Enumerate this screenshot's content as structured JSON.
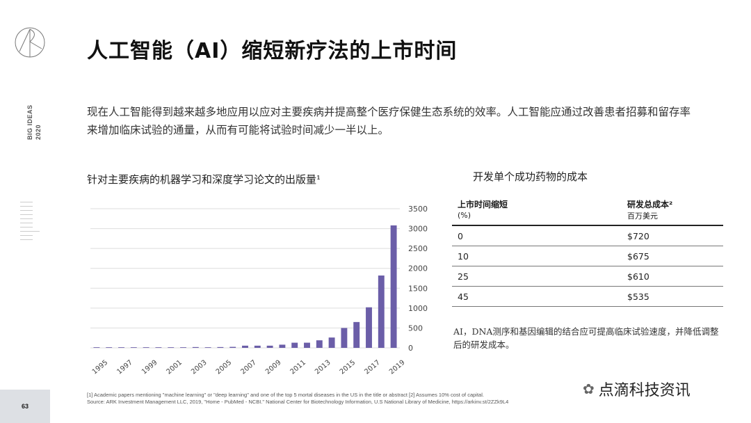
{
  "sidebar": {
    "logo": "ARK",
    "brand_line1": "BIG IDEAS",
    "brand_line2": "2020",
    "page_number": "63"
  },
  "title": "人工智能（AI）缩短新疗法的上市时间",
  "intro": "现在人工智能得到越来越多地应用以应对主要疾病并提高整个医疗保健生态系统的效率。人工智能应通过改善患者招募和留存率来增加临床试验的通量，从而有可能将试验时间减少一半以上。",
  "chart_data": {
    "type": "bar",
    "title": "针对主要疾病的机器学习和深度学习论文的出版量¹",
    "x": [
      1995,
      1996,
      1997,
      1998,
      1999,
      2000,
      2001,
      2002,
      2003,
      2004,
      2005,
      2006,
      2007,
      2008,
      2009,
      2010,
      2011,
      2012,
      2013,
      2014,
      2015,
      2016,
      2017,
      2018,
      2019
    ],
    "values": [
      15,
      15,
      15,
      15,
      15,
      15,
      15,
      15,
      20,
      15,
      20,
      25,
      55,
      55,
      55,
      80,
      130,
      130,
      190,
      260,
      500,
      650,
      1020,
      1820,
      3080
    ],
    "xticks": [
      "1995",
      "1997",
      "1999",
      "2001",
      "2003",
      "2005",
      "2007",
      "2009",
      "2011",
      "2013",
      "2015",
      "2017",
      "2019"
    ],
    "yticks": [
      "0",
      "500",
      "1000",
      "1500",
      "2000",
      "2500",
      "3000",
      "3500"
    ],
    "ylim": [
      0,
      3500
    ],
    "grid": true,
    "yaxis_side": "right",
    "color": "#6b5ea8"
  },
  "table": {
    "title": "开发单个成功药物的成本",
    "col1_header": "上市时间缩短",
    "col1_unit": "(%)",
    "col2_header": "研发总成本²",
    "col2_unit": "百万美元",
    "rows": [
      {
        "pct": "0",
        "cost": "$720"
      },
      {
        "pct": "10",
        "cost": "$675"
      },
      {
        "pct": "25",
        "cost": "$610"
      },
      {
        "pct": "45",
        "cost": "$535"
      }
    ]
  },
  "note": "AI，DNA测序和基因编辑的结合应可提高临床试验速度，并降低调整后的研发成本。",
  "footnote1": "[1] Academic papers mentioning \"machine learning\" or \"deep learning\" and one of the top 5 mortal diseases in the US in the title or abstract [2] Assumes 10% cost of capital.",
  "footnote2": "Source: ARK Investment Management LLC, 2019, \"Home - PubMed - NCBI.\" National Center for Biotechnology Information, U.S National Library of Medicine, https://arkinv.st/2ZZk9L4",
  "watermark": "点滴科技资讯"
}
